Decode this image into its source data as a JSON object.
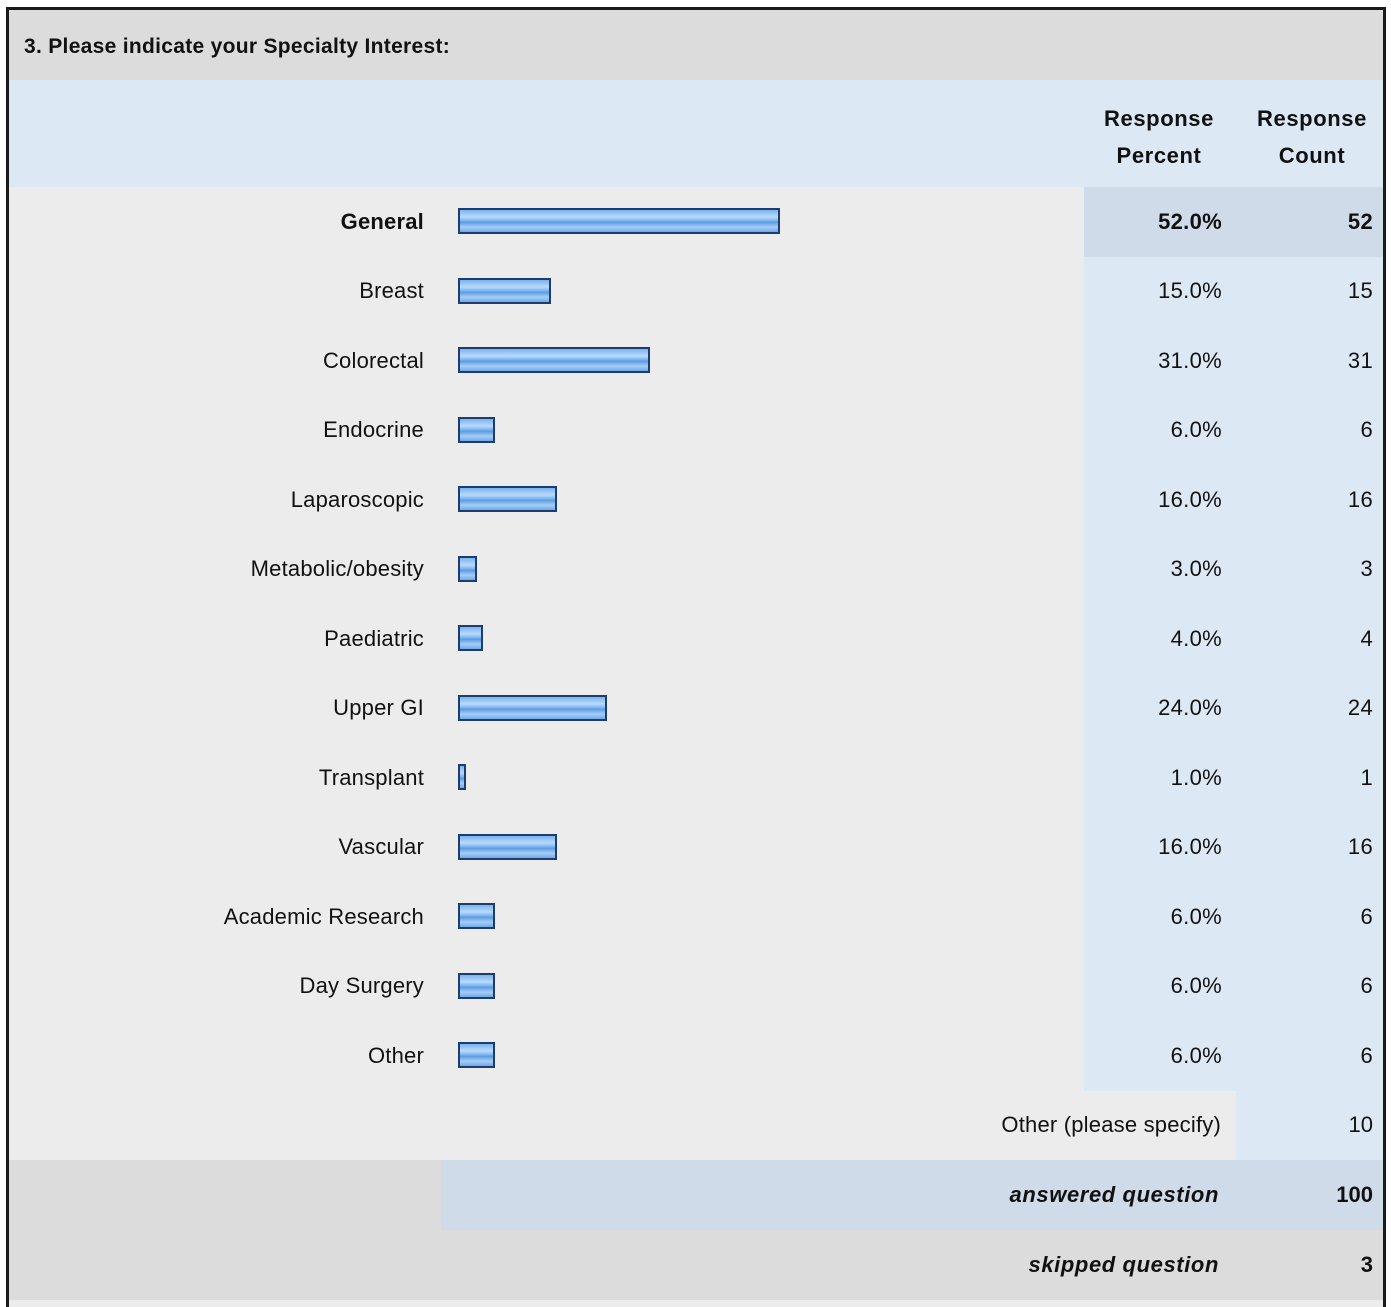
{
  "question": {
    "title": "3. Please indicate your Specialty Interest:"
  },
  "columns": {
    "percent_label": "Response Percent",
    "count_label": "Response Count"
  },
  "chart_data": {
    "type": "bar",
    "orientation": "horizontal",
    "title": "3. Please indicate your Specialty Interest:",
    "categories": [
      "General",
      "Breast",
      "Colorectal",
      "Endocrine",
      "Laparoscopic",
      "Metabolic/obesity",
      "Paediatric",
      "Upper GI",
      "Transplant",
      "Vascular",
      "Academic Research",
      "Day Surgery",
      "Other"
    ],
    "percent_labels": [
      "52.0%",
      "15.0%",
      "31.0%",
      "6.0%",
      "16.0%",
      "3.0%",
      "4.0%",
      "24.0%",
      "1.0%",
      "16.0%",
      "6.0%",
      "6.0%",
      "6.0%"
    ],
    "values": [
      52.0,
      15.0,
      31.0,
      6.0,
      16.0,
      3.0,
      4.0,
      24.0,
      1.0,
      16.0,
      6.0,
      6.0,
      6.0
    ],
    "counts": [
      52,
      15,
      31,
      6,
      16,
      3,
      4,
      24,
      1,
      16,
      6,
      6,
      6
    ],
    "highlight_index": 0,
    "xlim": [
      0,
      100
    ],
    "bar_color": "#7db6f0",
    "bar_border_color": "#1d3d6e"
  },
  "other_specify": {
    "label": "Other (please specify)",
    "count": "10"
  },
  "summary": {
    "answered_label": "answered question",
    "answered_value": "100",
    "skipped_label": "skipped question",
    "skipped_value": "3"
  },
  "colors": {
    "header_bg": "#dcdcdc",
    "column_bg": "#dde8f5",
    "highlight_bg": "#cfdbe8",
    "body_bg": "#ececec"
  }
}
